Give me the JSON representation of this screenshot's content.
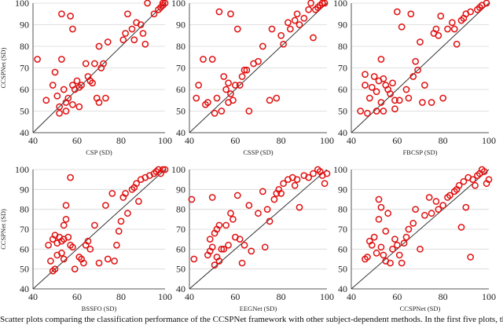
{
  "figure": {
    "caption": "Scatter plots comparing the classification performance of the CCSPNet framework with other subject-dependent methods. In the first five plots, the horizontal axis pres"
  },
  "style": {
    "marker_color": "#e01010",
    "line_color": "#333333",
    "axis_color": "#555555",
    "grid_color": "#d6d6d6"
  },
  "chart_data": [
    {
      "type": "scatter",
      "xlabel": "CSP (SD)",
      "ylabel": "CCSPNet (SD)",
      "xlim": [
        40,
        100
      ],
      "ylim": [
        40,
        100
      ],
      "xticks": [
        40,
        60,
        80,
        100
      ],
      "yticks": [
        40,
        50,
        60,
        70,
        80,
        90,
        100
      ],
      "diagonal": true,
      "points": [
        [
          42,
          74
        ],
        [
          46,
          55
        ],
        [
          49,
          62
        ],
        [
          50,
          68
        ],
        [
          51,
          57
        ],
        [
          52,
          52
        ],
        [
          52,
          49
        ],
        [
          53,
          74
        ],
        [
          54,
          60
        ],
        [
          53,
          95
        ],
        [
          55,
          54
        ],
        [
          55,
          50
        ],
        [
          56,
          56
        ],
        [
          57,
          94
        ],
        [
          58,
          88
        ],
        [
          58,
          62
        ],
        [
          58,
          53
        ],
        [
          59,
          60
        ],
        [
          60,
          64
        ],
        [
          61,
          52
        ],
        [
          61,
          61
        ],
        [
          62,
          62
        ],
        [
          64,
          72
        ],
        [
          65,
          66
        ],
        [
          66,
          64
        ],
        [
          67,
          63
        ],
        [
          68,
          72
        ],
        [
          69,
          56
        ],
        [
          70,
          80
        ],
        [
          70,
          54
        ],
        [
          71,
          70
        ],
        [
          72,
          72
        ],
        [
          73,
          56
        ],
        [
          74,
          82
        ],
        [
          81,
          83
        ],
        [
          82,
          86
        ],
        [
          83,
          95
        ],
        [
          85,
          88
        ],
        [
          86,
          83
        ],
        [
          87,
          91
        ],
        [
          89,
          90
        ],
        [
          90,
          86
        ],
        [
          91,
          81
        ],
        [
          92,
          100
        ],
        [
          95,
          95
        ],
        [
          97,
          97
        ],
        [
          98,
          98
        ],
        [
          99,
          99
        ],
        [
          99,
          100
        ],
        [
          100,
          100
        ]
      ]
    },
    {
      "type": "scatter",
      "xlabel": "CSSP (SD)",
      "ylabel": "",
      "xlim": [
        40,
        100
      ],
      "ylim": [
        40,
        100
      ],
      "xticks": [
        40,
        60,
        80,
        100
      ],
      "yticks": [
        40,
        50,
        60,
        70,
        80,
        90,
        100
      ],
      "diagonal": true,
      "points": [
        [
          43,
          56
        ],
        [
          44,
          62
        ],
        [
          46,
          74
        ],
        [
          47,
          53
        ],
        [
          48,
          54
        ],
        [
          50,
          74
        ],
        [
          51,
          49
        ],
        [
          52,
          56
        ],
        [
          53,
          96
        ],
        [
          54,
          50
        ],
        [
          55,
          66
        ],
        [
          56,
          60
        ],
        [
          57,
          63
        ],
        [
          57,
          54
        ],
        [
          58,
          95
        ],
        [
          58,
          58
        ],
        [
          59,
          55
        ],
        [
          60,
          62
        ],
        [
          61,
          88
        ],
        [
          62,
          62
        ],
        [
          63,
          66
        ],
        [
          64,
          69
        ],
        [
          65,
          69
        ],
        [
          66,
          50
        ],
        [
          68,
          72
        ],
        [
          70,
          73
        ],
        [
          72,
          80
        ],
        [
          75,
          55
        ],
        [
          76,
          88
        ],
        [
          78,
          56
        ],
        [
          80,
          85
        ],
        [
          81,
          81
        ],
        [
          83,
          91
        ],
        [
          84,
          88
        ],
        [
          86,
          92
        ],
        [
          87,
          95
        ],
        [
          88,
          90
        ],
        [
          90,
          93
        ],
        [
          92,
          97
        ],
        [
          93,
          100
        ],
        [
          94,
          84
        ],
        [
          95,
          97
        ],
        [
          96,
          98
        ],
        [
          97,
          99
        ],
        [
          98,
          100
        ],
        [
          99,
          100
        ]
      ]
    },
    {
      "type": "scatter",
      "xlabel": "FBCSP (SD)",
      "ylabel": "",
      "xlim": [
        40,
        100
      ],
      "ylim": [
        40,
        100
      ],
      "xticks": [
        40,
        60,
        80,
        100
      ],
      "yticks": [
        40,
        50,
        60,
        70,
        80,
        90,
        100
      ],
      "diagonal": true,
      "points": [
        [
          44,
          50
        ],
        [
          46,
          67
        ],
        [
          46,
          62
        ],
        [
          47,
          49
        ],
        [
          48,
          56
        ],
        [
          49,
          61
        ],
        [
          50,
          66
        ],
        [
          51,
          59
        ],
        [
          51,
          50
        ],
        [
          52,
          64
        ],
        [
          53,
          74
        ],
        [
          53,
          54
        ],
        [
          54,
          65
        ],
        [
          54,
          50
        ],
        [
          55,
          62
        ],
        [
          56,
          60
        ],
        [
          57,
          58
        ],
        [
          58,
          63
        ],
        [
          59,
          55
        ],
        [
          59,
          51
        ],
        [
          60,
          96
        ],
        [
          61,
          55
        ],
        [
          62,
          89
        ],
        [
          64,
          60
        ],
        [
          65,
          56
        ],
        [
          66,
          95
        ],
        [
          67,
          66
        ],
        [
          68,
          73
        ],
        [
          69,
          69
        ],
        [
          70,
          82
        ],
        [
          71,
          54
        ],
        [
          72,
          62
        ],
        [
          75,
          54
        ],
        [
          76,
          86
        ],
        [
          77,
          88
        ],
        [
          78,
          85
        ],
        [
          79,
          94
        ],
        [
          80,
          56
        ],
        [
          82,
          88
        ],
        [
          84,
          91
        ],
        [
          85,
          88
        ],
        [
          86,
          81
        ],
        [
          88,
          92
        ],
        [
          89,
          93
        ],
        [
          90,
          95
        ],
        [
          92,
          96
        ],
        [
          95,
          97
        ],
        [
          96,
          98
        ],
        [
          97,
          99
        ],
        [
          99,
          100
        ]
      ]
    },
    {
      "type": "scatter",
      "xlabel": "BSSFO (SD)",
      "ylabel": "CCSPNet (SD)",
      "xlim": [
        40,
        100
      ],
      "ylim": [
        40,
        100
      ],
      "xticks": [
        40,
        60,
        80,
        100
      ],
      "yticks": [
        40,
        50,
        60,
        70,
        80,
        90,
        100
      ],
      "diagonal": true,
      "points": [
        [
          47,
          62
        ],
        [
          48,
          54
        ],
        [
          49,
          49
        ],
        [
          49,
          65
        ],
        [
          50,
          50
        ],
        [
          50,
          67
        ],
        [
          51,
          63
        ],
        [
          51,
          57
        ],
        [
          52,
          66
        ],
        [
          53,
          64
        ],
        [
          53,
          58
        ],
        [
          54,
          65
        ],
        [
          54,
          55
        ],
        [
          54,
          72
        ],
        [
          55,
          82
        ],
        [
          55,
          75
        ],
        [
          56,
          66
        ],
        [
          57,
          62
        ],
        [
          57,
          96
        ],
        [
          58,
          61
        ],
        [
          59,
          50
        ],
        [
          61,
          56
        ],
        [
          62,
          55
        ],
        [
          63,
          53
        ],
        [
          64,
          62
        ],
        [
          65,
          64
        ],
        [
          66,
          60
        ],
        [
          68,
          72
        ],
        [
          70,
          53
        ],
        [
          73,
          82
        ],
        [
          74,
          55
        ],
        [
          76,
          88
        ],
        [
          77,
          54
        ],
        [
          78,
          62
        ],
        [
          79,
          69
        ],
        [
          80,
          74
        ],
        [
          81,
          86
        ],
        [
          82,
          88
        ],
        [
          83,
          78
        ],
        [
          85,
          90
        ],
        [
          86,
          91
        ],
        [
          87,
          93
        ],
        [
          88,
          84
        ],
        [
          89,
          95
        ],
        [
          91,
          96
        ],
        [
          93,
          97
        ],
        [
          95,
          98
        ],
        [
          96,
          99
        ],
        [
          97,
          100
        ],
        [
          98,
          98
        ],
        [
          99,
          100
        ],
        [
          100,
          100
        ]
      ]
    },
    {
      "type": "scatter",
      "xlabel": "EEGNet (SD)",
      "ylabel": "",
      "xlim": [
        40,
        100
      ],
      "ylim": [
        40,
        100
      ],
      "xticks": [
        40,
        60,
        80,
        100
      ],
      "yticks": [
        40,
        50,
        60,
        70,
        80,
        90,
        100
      ],
      "diagonal": true,
      "points": [
        [
          41,
          85
        ],
        [
          42,
          55
        ],
        [
          48,
          57
        ],
        [
          49,
          65
        ],
        [
          49,
          59
        ],
        [
          50,
          61
        ],
        [
          50,
          86
        ],
        [
          51,
          68
        ],
        [
          51,
          52
        ],
        [
          52,
          70
        ],
        [
          52,
          56
        ],
        [
          53,
          72
        ],
        [
          53,
          54
        ],
        [
          54,
          60
        ],
        [
          55,
          60
        ],
        [
          56,
          72
        ],
        [
          57,
          62
        ],
        [
          58,
          78
        ],
        [
          59,
          75
        ],
        [
          60,
          66
        ],
        [
          61,
          87
        ],
        [
          62,
          65
        ],
        [
          63,
          53
        ],
        [
          64,
          62
        ],
        [
          66,
          82
        ],
        [
          67,
          59
        ],
        [
          70,
          78
        ],
        [
          72,
          89
        ],
        [
          73,
          61
        ],
        [
          74,
          80
        ],
        [
          75,
          74
        ],
        [
          77,
          85
        ],
        [
          78,
          88
        ],
        [
          79,
          90
        ],
        [
          80,
          88
        ],
        [
          81,
          93
        ],
        [
          83,
          95
        ],
        [
          85,
          96
        ],
        [
          86,
          92
        ],
        [
          87,
          95
        ],
        [
          88,
          81
        ],
        [
          90,
          97
        ],
        [
          92,
          96
        ],
        [
          94,
          98
        ],
        [
          96,
          100
        ],
        [
          97,
          99
        ],
        [
          98,
          97
        ],
        [
          99,
          93
        ],
        [
          100,
          98
        ]
      ]
    },
    {
      "type": "scatter",
      "xlabel": "CCSPNet (SD)",
      "ylabel": "",
      "xlim": [
        40,
        100
      ],
      "ylim": [
        40,
        100
      ],
      "xticks": [
        40,
        60,
        80,
        100
      ],
      "yticks": [
        40,
        50,
        60,
        70,
        80,
        90,
        100
      ],
      "diagonal": true,
      "points": [
        [
          46,
          55
        ],
        [
          47,
          56
        ],
        [
          48,
          64
        ],
        [
          49,
          62
        ],
        [
          50,
          66
        ],
        [
          51,
          58
        ],
        [
          52,
          75
        ],
        [
          52,
          85
        ],
        [
          53,
          81
        ],
        [
          53,
          61
        ],
        [
          54,
          57
        ],
        [
          55,
          54
        ],
        [
          55,
          69
        ],
        [
          56,
          78
        ],
        [
          57,
          53
        ],
        [
          58,
          60
        ],
        [
          59,
          65
        ],
        [
          60,
          62
        ],
        [
          61,
          57
        ],
        [
          62,
          53
        ],
        [
          63,
          63
        ],
        [
          64,
          66
        ],
        [
          65,
          70
        ],
        [
          67,
          73
        ],
        [
          68,
          80
        ],
        [
          70,
          60
        ],
        [
          72,
          77
        ],
        [
          74,
          86
        ],
        [
          75,
          78
        ],
        [
          77,
          84
        ],
        [
          78,
          80
        ],
        [
          80,
          82
        ],
        [
          82,
          86
        ],
        [
          83,
          87
        ],
        [
          85,
          89
        ],
        [
          86,
          90
        ],
        [
          87,
          92
        ],
        [
          88,
          71
        ],
        [
          89,
          94
        ],
        [
          90,
          81
        ],
        [
          91,
          96
        ],
        [
          92,
          56
        ],
        [
          93,
          95
        ],
        [
          94,
          92
        ],
        [
          95,
          97
        ],
        [
          96,
          98
        ],
        [
          97,
          100
        ],
        [
          98,
          99
        ],
        [
          99,
          93
        ],
        [
          100,
          95
        ]
      ]
    }
  ]
}
